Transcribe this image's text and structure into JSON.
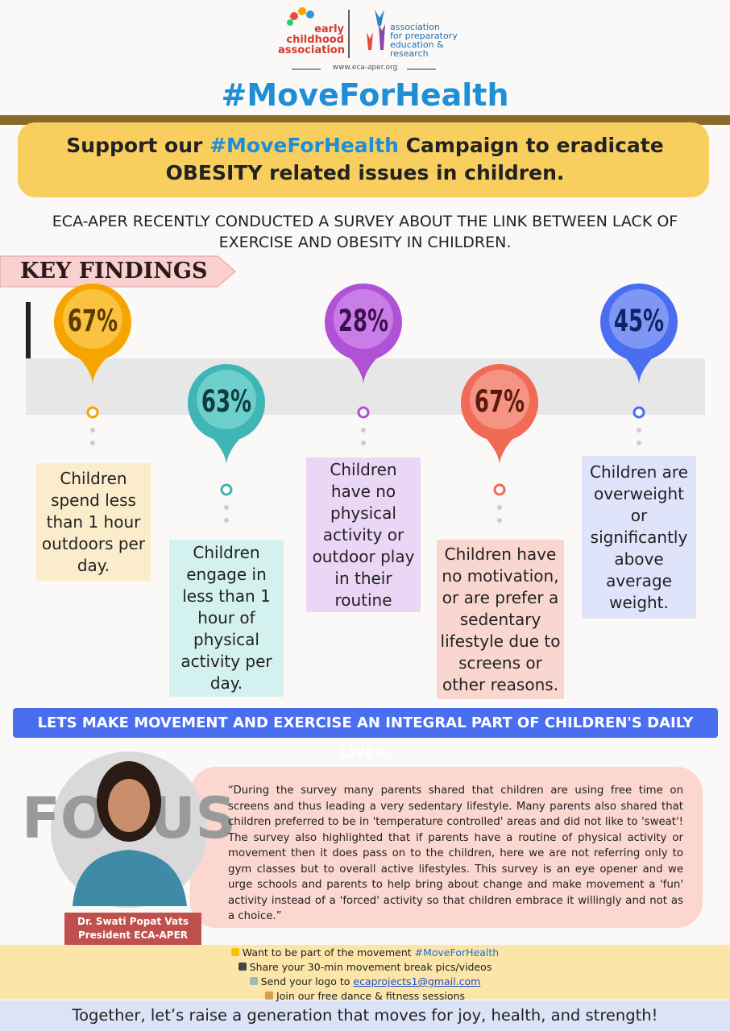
{
  "logo": {
    "left": [
      "early",
      "childhood",
      "association"
    ],
    "right": [
      "association",
      "for preparatory",
      "education &",
      "research"
    ],
    "url": "www.eca-aper.org"
  },
  "hashtag_title": "#MoveForHealth",
  "banner": {
    "before": "Support our ",
    "hashtag": "#MoveForHealth",
    "after": " Campaign to eradicate OBESITY related issues in children."
  },
  "survey_intro": "ECA-APER RECENTLY CONDUCTED A SURVEY ABOUT THE LINK BETWEEN LACK OF EXERCISE AND OBESITY IN CHILDREN.",
  "key_findings": {
    "heading": "KEY FINDINGS",
    "items": [
      {
        "percent": "67%",
        "text": "Children spend less than 1 hour outdoors per day."
      },
      {
        "percent": "63%",
        "text": "Children engage in less than 1 hour of physical activity per day."
      },
      {
        "percent": "28%",
        "text": "Children have no physical activity or outdoor play in their routine"
      },
      {
        "percent": "67%",
        "text": "Children have no motivation, or are prefer a sedentary lifestyle due to screens or other reasons."
      },
      {
        "percent": "45%",
        "text": "Children are overweight or significantly above average weight."
      }
    ]
  },
  "call_strip": "LETS MAKE MOVEMENT AND EXERCISE AN INTEGRAL PART OF CHILDREN'S DAILY LIVES.",
  "person": {
    "name": "Dr. Swati Popat Vats",
    "role": "President ECA-APER"
  },
  "quote": "“During the survey many parents shared that children are using free time on screens and thus leading a very sedentary lifestyle. Many parents also shared that children preferred to be in 'temperature controlled' areas and did not like to 'sweat'! The survey also highlighted that if parents have a routine of physical activity or movement then it does pass on to the children, here we are not referring only to gym classes but to overall active lifestyles. This survey is an eye opener and we urge schools and parents to help bring about change and make movement a 'fun' activity instead of a 'forced' activity so that children embrace it willingly and not as a choice.”",
  "cta": {
    "line1": "Want to be part of the movement ",
    "line1_hashtag": "#MoveForHealth",
    "line2": "Share your 30-min movement break pics/videos",
    "line3": "Send your logo to ",
    "email": "ecaprojects1@gmail.com",
    "line4": "Join our free dance & fitness sessions"
  },
  "footer": "Together, let’s raise a generation that moves for joy, health, and strength!"
}
